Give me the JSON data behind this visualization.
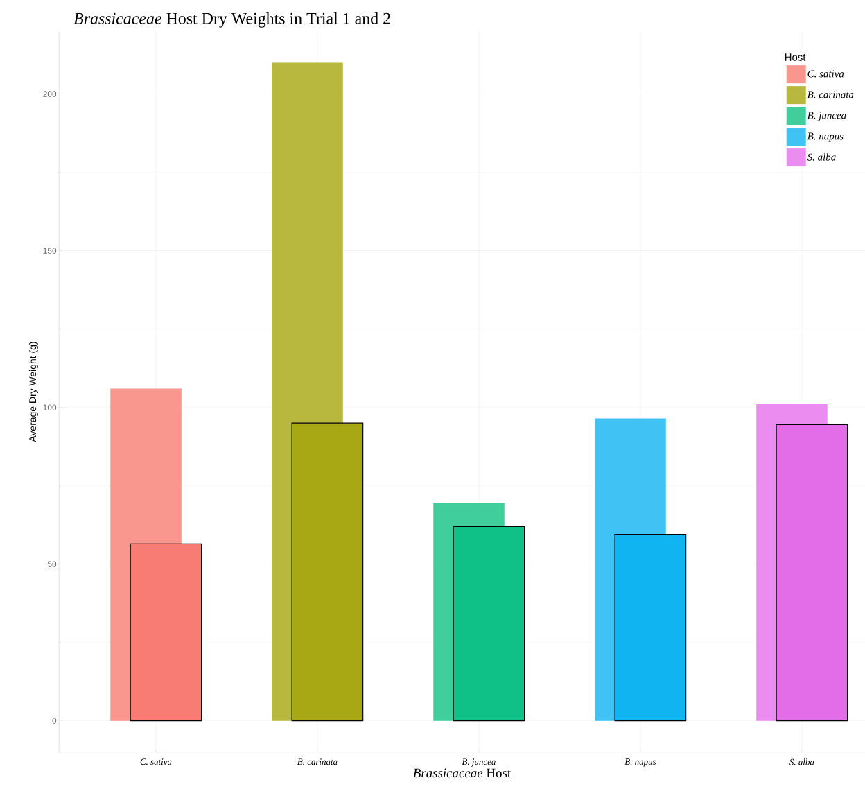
{
  "chart_data": {
    "type": "bar",
    "title": "*Brassicaceae* Host Dry Weights in Trial 1 and 2",
    "xlabel": "*Brassicaceae* Host",
    "ylabel": "Average Dry Weight (g)",
    "legend_title": "Host",
    "legend": "top right",
    "grid": true,
    "categories": [
      "C. sativa",
      "B. carinata",
      "B. juncea",
      "B. napus",
      "S. alba"
    ],
    "series": [
      {
        "name": "C. sativa",
        "color": "#f9978f",
        "values": [
          106,
          null,
          null,
          null,
          null
        ]
      },
      {
        "name": "B. carinata",
        "color": "#b8b83f",
        "values": [
          null,
          210,
          null,
          null,
          null
        ]
      },
      {
        "name": "B. juncea",
        "color": "#40cf9c",
        "values": [
          null,
          null,
          69.5,
          null,
          null
        ]
      },
      {
        "name": "B. napus",
        "color": "#40c2f5",
        "values": [
          null,
          null,
          null,
          96.5,
          null
        ]
      },
      {
        "name": "S. alba",
        "color": "#ea8cf0",
        "values": [
          null,
          null,
          null,
          null,
          101
        ]
      },
      {
        "colors": [
          "#f87c73",
          "#a8a814",
          "#10c187",
          "#10b4f1",
          "#e36ce9"
        ],
        "values": [
          56.5,
          95,
          62,
          59.5,
          94.5
        ]
      }
    ],
    "ylim": [
      -10,
      220
    ],
    "yticks": [
      0,
      50,
      100,
      150,
      200
    ]
  }
}
